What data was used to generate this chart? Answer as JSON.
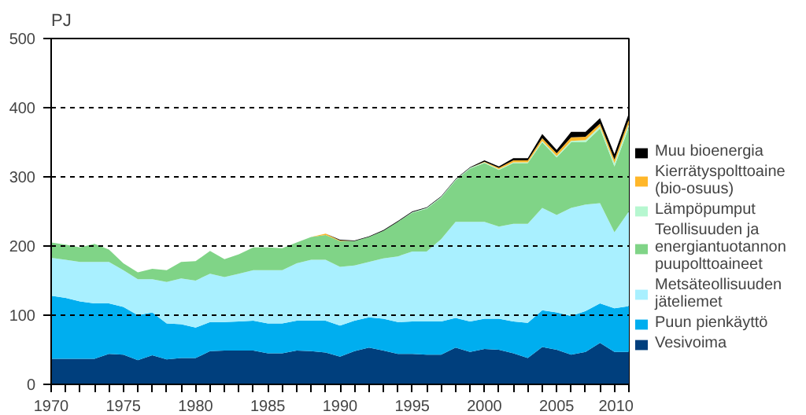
{
  "chart_data": {
    "type": "area",
    "stacked": true,
    "ylabel": "PJ",
    "x": [
      1970,
      1971,
      1972,
      1973,
      1974,
      1975,
      1976,
      1977,
      1978,
      1979,
      1980,
      1981,
      1982,
      1983,
      1984,
      1985,
      1986,
      1987,
      1988,
      1989,
      1990,
      1991,
      1992,
      1993,
      1994,
      1995,
      1996,
      1997,
      1998,
      1999,
      2000,
      2001,
      2002,
      2003,
      2004,
      2005,
      2006,
      2007,
      2008,
      2009,
      2010
    ],
    "series": [
      {
        "name": "Vesivoima",
        "color": "#003f7d",
        "values": [
          37,
          37,
          37,
          37,
          44,
          43,
          35,
          42,
          36,
          38,
          38,
          48,
          49,
          49,
          49,
          45,
          45,
          49,
          48,
          46,
          40,
          48,
          53,
          49,
          44,
          44,
          43,
          43,
          53,
          47,
          51,
          50,
          45,
          38,
          54,
          50,
          43,
          47,
          60,
          47,
          47
        ]
      },
      {
        "name": "Puun pienkäyttö",
        "color": "#00aeef",
        "values": [
          91,
          88,
          83,
          80,
          73,
          69,
          65,
          62,
          52,
          49,
          44,
          42,
          41,
          42,
          43,
          43,
          43,
          43,
          44,
          46,
          45,
          44,
          44,
          46,
          46,
          47,
          48,
          48,
          43,
          44,
          44,
          45,
          46,
          51,
          53,
          54,
          56,
          59,
          57,
          63,
          66
        ]
      },
      {
        "name": "Metsäteollisuuden jäteliemet",
        "color": "#a9f0ff",
        "values": [
          55,
          55,
          57,
          60,
          60,
          53,
          52,
          48,
          60,
          66,
          68,
          70,
          65,
          69,
          73,
          77,
          77,
          83,
          88,
          88,
          85,
          80,
          80,
          87,
          95,
          101,
          101,
          119,
          139,
          144,
          140,
          133,
          141,
          143,
          148,
          141,
          156,
          154,
          145,
          110,
          137
        ]
      },
      {
        "name": "Teollisuuden ja energiantuotannon puupolttoaineet",
        "color": "#80d487",
        "values": [
          22,
          22,
          21,
          26,
          18,
          10,
          10,
          15,
          17,
          24,
          28,
          33,
          26,
          28,
          33,
          33,
          32,
          30,
          33,
          36,
          37,
          35,
          36,
          40,
          50,
          56,
          62,
          60,
          60,
          77,
          85,
          82,
          88,
          88,
          95,
          83,
          95,
          90,
          108,
          95,
          122
        ]
      },
      {
        "name": "Lämpöpumput",
        "color": "#b6f7d0",
        "values": [
          0,
          0,
          0,
          0,
          0,
          0,
          0,
          0,
          0,
          0,
          0,
          0,
          0,
          0,
          0,
          0,
          0,
          0,
          0,
          0,
          0,
          0,
          0,
          0,
          0,
          1,
          1,
          1,
          1,
          1,
          1,
          1,
          1,
          1,
          2,
          2,
          2,
          3,
          3,
          5,
          5
        ]
      },
      {
        "name": "Kierrätyspolttoaine (bio-osuus)",
        "color": "#ffb72a",
        "values": [
          0,
          0,
          0,
          0,
          0,
          0,
          0,
          0,
          0,
          0,
          0,
          0,
          0,
          0,
          0,
          0,
          0,
          0,
          0,
          2,
          1,
          0,
          0,
          0,
          0,
          0,
          0,
          0,
          0,
          0,
          1,
          2,
          3,
          3,
          4,
          4,
          5,
          5,
          4,
          5,
          6
        ]
      },
      {
        "name": "Muu bioenergia",
        "color": "#000000",
        "values": [
          0,
          0,
          0,
          0,
          0,
          0,
          0,
          0,
          0,
          0,
          0,
          0,
          0,
          0,
          0,
          0,
          0,
          0,
          0,
          0,
          1,
          1,
          1,
          1,
          1,
          1,
          1,
          1,
          1,
          1,
          2,
          2,
          3,
          3,
          6,
          5,
          8,
          7,
          8,
          8,
          9
        ]
      }
    ],
    "xlim": [
      1970,
      2010
    ],
    "xticks": [
      1970,
      {
        "value": 1971,
        "label": null
      },
      {
        "value": 1972,
        "label": null
      },
      {
        "value": 1973,
        "label": null
      },
      {
        "value": 1974,
        "label": null
      },
      1975,
      {
        "value": 1976,
        "label": null
      },
      {
        "value": 1977,
        "label": null
      },
      {
        "value": 1978,
        "label": null
      },
      {
        "value": 1979,
        "label": null
      },
      1980,
      {
        "value": 1981,
        "label": null
      },
      {
        "value": 1982,
        "label": null
      },
      {
        "value": 1983,
        "label": null
      },
      {
        "value": 1984,
        "label": null
      },
      1985,
      {
        "value": 1986,
        "label": null
      },
      {
        "value": 1987,
        "label": null
      },
      {
        "value": 1988,
        "label": null
      },
      {
        "value": 1989,
        "label": null
      },
      1990,
      {
        "value": 1991,
        "label": null
      },
      {
        "value": 1992,
        "label": null
      },
      {
        "value": 1993,
        "label": null
      },
      {
        "value": 1994,
        "label": null
      },
      1995,
      {
        "value": 1996,
        "label": null
      },
      {
        "value": 1997,
        "label": null
      },
      {
        "value": 1998,
        "label": null
      },
      {
        "value": 1999,
        "label": null
      },
      2000,
      {
        "value": 2001,
        "label": null
      },
      {
        "value": 2002,
        "label": null
      },
      {
        "value": 2003,
        "label": null
      },
      {
        "value": 2004,
        "label": null
      },
      2005,
      {
        "value": 2006,
        "label": null
      },
      {
        "value": 2007,
        "label": null
      },
      {
        "value": 2008,
        "label": null
      },
      {
        "value": 2009,
        "label": null
      },
      2010
    ],
    "ylim": [
      0,
      500
    ],
    "yticks": [
      0,
      100,
      200,
      300,
      400,
      500
    ],
    "grid": "y",
    "legend": "right"
  }
}
